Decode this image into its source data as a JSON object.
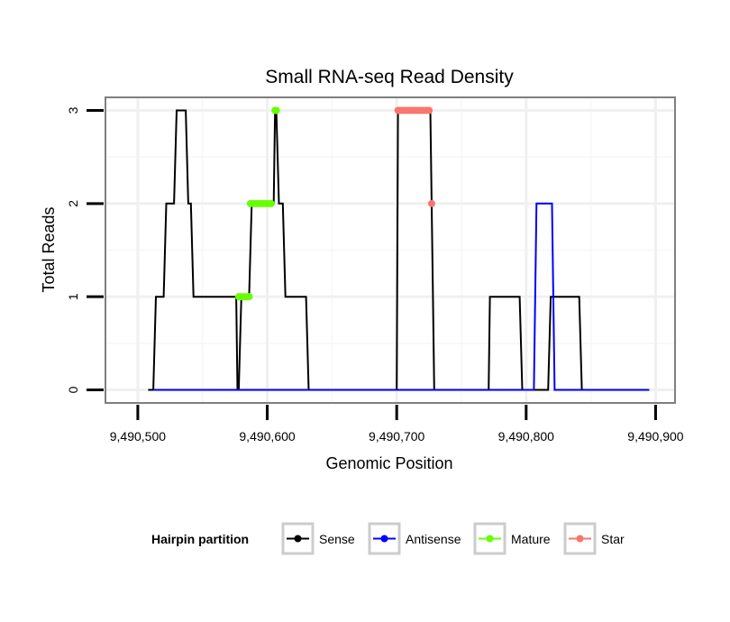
{
  "chart_data": {
    "type": "line",
    "title": "Small RNA-seq Read Density",
    "xlabel": "Genomic Position",
    "ylabel": "Total Reads",
    "xlim": [
      9490475,
      9490915
    ],
    "ylim": [
      -0.14,
      3.14
    ],
    "x_ticks": [
      9490500,
      9490600,
      9490700,
      9490800,
      9490900
    ],
    "x_tick_labels": [
      "9,490,500",
      "9,490,600",
      "9,490,700",
      "9,490,800",
      "9,490,900"
    ],
    "y_ticks": [
      0,
      1,
      2,
      3
    ],
    "y_tick_labels": [
      "0",
      "1",
      "2",
      "3"
    ],
    "grid": true,
    "legend": {
      "title": "Hairpin partition",
      "position": "bottom",
      "entries": [
        {
          "name": "Sense",
          "color": "#000000"
        },
        {
          "name": "Antisense",
          "color": "#0000ff"
        },
        {
          "name": "Mature",
          "color": "#66ff00"
        },
        {
          "name": "Star",
          "color": "#f8766d"
        }
      ]
    },
    "series": [
      {
        "name": "Sense",
        "color": "#000000",
        "points": [
          [
            9490508,
            0
          ],
          [
            9490512,
            0
          ],
          [
            9490514,
            1
          ],
          [
            9490520,
            1
          ],
          [
            9490522,
            2
          ],
          [
            9490528,
            2
          ],
          [
            9490530,
            3
          ],
          [
            9490537,
            3
          ],
          [
            9490539,
            2
          ],
          [
            9490541,
            2
          ],
          [
            9490543,
            1
          ],
          [
            9490576,
            1
          ],
          [
            9490577,
            0
          ],
          [
            9490578,
            0
          ],
          [
            9490580,
            1
          ],
          [
            9490586,
            1
          ],
          [
            9490588,
            2
          ],
          [
            9490605,
            2
          ],
          [
            9490606,
            3
          ],
          [
            9490607,
            3
          ],
          [
            9490609,
            2
          ],
          [
            9490612,
            2
          ],
          [
            9490614,
            1
          ],
          [
            9490630,
            1
          ],
          [
            9490632,
            0
          ],
          [
            9490700,
            0
          ],
          [
            9490701,
            3
          ],
          [
            9490726,
            3
          ],
          [
            9490728,
            1
          ],
          [
            9490729,
            0
          ],
          [
            9490771,
            0
          ],
          [
            9490772,
            1
          ],
          [
            9490795,
            1
          ],
          [
            9490797,
            0
          ],
          [
            9490817,
            0
          ],
          [
            9490819,
            1
          ],
          [
            9490841,
            1
          ],
          [
            9490843,
            0
          ],
          [
            9490895,
            0
          ]
        ]
      },
      {
        "name": "Antisense",
        "color": "#0000ff",
        "points": [
          [
            9490512,
            0
          ],
          [
            9490806,
            0
          ],
          [
            9490808,
            2
          ],
          [
            9490820,
            2
          ],
          [
            9490822,
            0
          ],
          [
            9490895,
            0
          ]
        ]
      },
      {
        "name": "Mature",
        "color": "#66ff00",
        "points": [
          [
            9490578,
            1
          ],
          [
            9490580,
            1
          ],
          [
            9490582,
            1
          ],
          [
            9490584,
            1
          ],
          [
            9490586,
            1
          ],
          [
            9490587,
            2
          ],
          [
            9490589,
            2
          ],
          [
            9490591,
            2
          ],
          [
            9490593,
            2
          ],
          [
            9490595,
            2
          ],
          [
            9490597,
            2
          ],
          [
            9490599,
            2
          ],
          [
            9490601,
            2
          ],
          [
            9490603,
            2
          ],
          [
            9490606,
            3
          ],
          [
            9490607,
            3
          ]
        ]
      },
      {
        "name": "Star",
        "color": "#f8766d",
        "points": [
          [
            9490701,
            3
          ],
          [
            9490703,
            3
          ],
          [
            9490705,
            3
          ],
          [
            9490707,
            3
          ],
          [
            9490709,
            3
          ],
          [
            9490711,
            3
          ],
          [
            9490713,
            3
          ],
          [
            9490715,
            3
          ],
          [
            9490717,
            3
          ],
          [
            9490719,
            3
          ],
          [
            9490721,
            3
          ],
          [
            9490723,
            3
          ],
          [
            9490725,
            3
          ],
          [
            9490727,
            2
          ]
        ]
      }
    ]
  }
}
